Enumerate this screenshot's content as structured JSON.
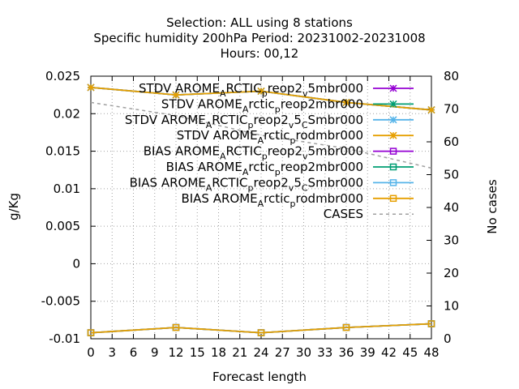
{
  "chart_data": {
    "type": "line",
    "title_lines": [
      "Selection: ALL using     8 stations",
      "Specific humidity 200hPa   Period: 20231002-20231008",
      "Hours:  00,12"
    ],
    "xlabel": "Forecast length",
    "ylabel": "g/Kg",
    "y2label": "No cases",
    "xlim": [
      0,
      48
    ],
    "ylim": [
      -0.01,
      0.025
    ],
    "y2lim": [
      0,
      80
    ],
    "xticks": [
      "0",
      "3",
      "6",
      "9",
      "12",
      "15",
      "18",
      "21",
      "24",
      "27",
      "30",
      "33",
      "36",
      "39",
      "42",
      "45",
      "48"
    ],
    "yticks": [
      "-0.01",
      "-0.005",
      "0",
      "0.005",
      "0.01",
      "0.015",
      "0.02",
      "0.025"
    ],
    "y2ticks": [
      "0",
      "10",
      "20",
      "30",
      "40",
      "50",
      "60",
      "70",
      "80"
    ],
    "grid": true,
    "legend_position": "top-right",
    "series": [
      {
        "name": "STDV AROME_ARCTIC_reop2_v5mbr000",
        "axis": "y1",
        "color": "#9400d3",
        "marker": "x-star",
        "dash": "solid",
        "x": [
          0,
          12,
          24,
          36,
          48
        ],
        "y": [
          0.0235,
          0.0225,
          0.023,
          0.0215,
          0.0205
        ]
      },
      {
        "name": "STDV AROME_Arctic_preop2mbr000",
        "axis": "y1",
        "color": "#009e73",
        "marker": "x-star",
        "dash": "solid",
        "x": [
          0,
          12,
          24,
          36,
          48
        ],
        "y": [
          0.0235,
          0.0225,
          0.023,
          0.0215,
          0.0205
        ]
      },
      {
        "name": "STDV AROME_ARCTIC_preop2_v5_CSmbr000",
        "axis": "y1",
        "color": "#56b4e9",
        "marker": "x-star",
        "dash": "solid",
        "x": [
          0,
          12,
          24,
          36,
          48
        ],
        "y": [
          0.0235,
          0.0225,
          0.023,
          0.0215,
          0.0205
        ]
      },
      {
        "name": "STDV AROME_Arctic_prodmbr000",
        "axis": "y1",
        "color": "#e69f00",
        "marker": "x-star",
        "dash": "solid",
        "x": [
          0,
          12,
          24,
          36,
          48
        ],
        "y": [
          0.0235,
          0.0225,
          0.023,
          0.0215,
          0.0205
        ]
      },
      {
        "name": "BIAS AROME_ARCTIC_preop2_v5mbr000",
        "axis": "y1",
        "color": "#9400d3",
        "marker": "square",
        "dash": "solid",
        "x": [
          0,
          12,
          24,
          36,
          48
        ],
        "y": [
          -0.0092,
          -0.0085,
          -0.0092,
          -0.0085,
          -0.008
        ]
      },
      {
        "name": "BIAS AROME_Arctic_preop2mbr000",
        "axis": "y1",
        "color": "#009e73",
        "marker": "square",
        "dash": "solid",
        "x": [
          0,
          12,
          24,
          36,
          48
        ],
        "y": [
          -0.0092,
          -0.0085,
          -0.0092,
          -0.0085,
          -0.008
        ]
      },
      {
        "name": "BIAS AROME_ARCTIC_preop2_v5_CSmbr000",
        "axis": "y1",
        "color": "#56b4e9",
        "marker": "square",
        "dash": "solid",
        "x": [
          0,
          12,
          24,
          36,
          48
        ],
        "y": [
          -0.0092,
          -0.0085,
          -0.0092,
          -0.0085,
          -0.008
        ]
      },
      {
        "name": "BIAS AROME_Arctic_prodmbr000",
        "axis": "y1",
        "color": "#e69f00",
        "marker": "square",
        "dash": "solid",
        "x": [
          0,
          12,
          24,
          36,
          48
        ],
        "y": [
          -0.0092,
          -0.0085,
          -0.0092,
          -0.0085,
          -0.008
        ]
      },
      {
        "name": "CASES",
        "axis": "y2",
        "color": "#a0a0a0",
        "marker": "none",
        "dash": "dashed",
        "x": [
          0,
          12,
          24,
          36,
          48
        ],
        "y": [
          72,
          68,
          62,
          58,
          52
        ]
      }
    ],
    "legend_entries": [
      {
        "parts": [
          [
            "STDV AROME",
            "n"
          ],
          [
            "A",
            "sub"
          ],
          [
            "RCTIC",
            "n"
          ],
          [
            "p",
            "sub"
          ],
          [
            "reop2",
            "n"
          ],
          [
            "v",
            "sub"
          ],
          [
            "5mbr000",
            "n"
          ]
        ]
      },
      {
        "parts": [
          [
            "STDV AROME",
            "n"
          ],
          [
            "A",
            "sub"
          ],
          [
            "rctic",
            "n"
          ],
          [
            "p",
            "sub"
          ],
          [
            "reop2mbr000",
            "n"
          ]
        ]
      },
      {
        "parts": [
          [
            "STDV AROME",
            "n"
          ],
          [
            "A",
            "sub"
          ],
          [
            "RCTIC",
            "n"
          ],
          [
            "p",
            "sub"
          ],
          [
            "reop2",
            "n"
          ],
          [
            "v",
            "sub"
          ],
          [
            "5",
            "n"
          ],
          [
            "C",
            "sub"
          ],
          [
            "Smbr000",
            "n"
          ]
        ]
      },
      {
        "parts": [
          [
            "STDV AROME",
            "n"
          ],
          [
            "A",
            "sub"
          ],
          [
            "rctic",
            "n"
          ],
          [
            "p",
            "sub"
          ],
          [
            "rodmbr000",
            "n"
          ]
        ]
      },
      {
        "parts": [
          [
            "BIAS AROME",
            "n"
          ],
          [
            "A",
            "sub"
          ],
          [
            "RCTIC",
            "n"
          ],
          [
            "p",
            "sub"
          ],
          [
            "reop2",
            "n"
          ],
          [
            "v",
            "sub"
          ],
          [
            "5mbr000",
            "n"
          ]
        ]
      },
      {
        "parts": [
          [
            "BIAS AROME",
            "n"
          ],
          [
            "A",
            "sub"
          ],
          [
            "rctic",
            "n"
          ],
          [
            "p",
            "sub"
          ],
          [
            "reop2mbr000",
            "n"
          ]
        ]
      },
      {
        "parts": [
          [
            "BIAS AROME",
            "n"
          ],
          [
            "A",
            "sub"
          ],
          [
            "RCTIC",
            "n"
          ],
          [
            "p",
            "sub"
          ],
          [
            "reop2",
            "n"
          ],
          [
            "v",
            "sub"
          ],
          [
            "5",
            "n"
          ],
          [
            "C",
            "sub"
          ],
          [
            "Smbr000",
            "n"
          ]
        ]
      },
      {
        "parts": [
          [
            "BIAS AROME",
            "n"
          ],
          [
            "A",
            "sub"
          ],
          [
            "rctic",
            "n"
          ],
          [
            "p",
            "sub"
          ],
          [
            "rodmbr000",
            "n"
          ]
        ]
      },
      {
        "parts": [
          [
            "CASES",
            "n"
          ]
        ]
      }
    ]
  }
}
